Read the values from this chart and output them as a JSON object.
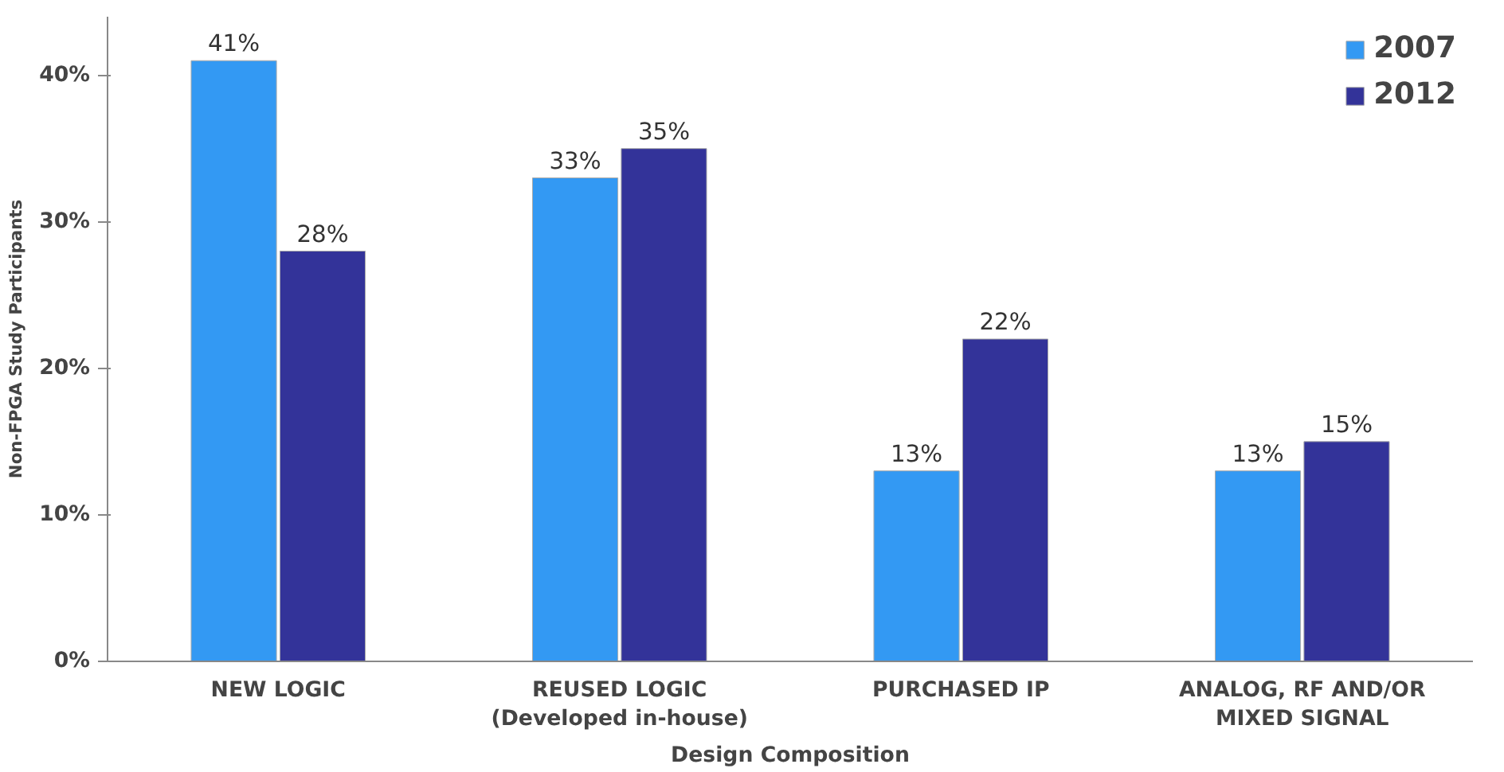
{
  "chart_data": {
    "type": "bar",
    "xlabel": "Design Composition",
    "ylabel": "Non-FPGA Study Participants",
    "categories": [
      "NEW LOGIC",
      "REUSED LOGIC\n(Developed in-house)",
      "PURCHASED IP",
      "ANALOG, RF AND/OR\nMIXED SIGNAL"
    ],
    "series": [
      {
        "name": "2007",
        "color": "#3399f3",
        "values": [
          41,
          33,
          13,
          13
        ],
        "value_labels": [
          "41%",
          "33%",
          "13%",
          "13%"
        ]
      },
      {
        "name": "2012",
        "color": "#333399",
        "values": [
          28,
          35,
          22,
          15
        ],
        "value_labels": [
          "28%",
          "35%",
          "22%",
          "15%"
        ]
      }
    ],
    "ylim": [
      0,
      44
    ],
    "yticks": [
      {
        "value": 0,
        "label": "0%"
      },
      {
        "value": 10,
        "label": "10%"
      },
      {
        "value": 20,
        "label": "20%"
      },
      {
        "value": 30,
        "label": "30%"
      },
      {
        "value": 40,
        "label": "40%"
      }
    ],
    "grid": false,
    "legend": "top right"
  }
}
